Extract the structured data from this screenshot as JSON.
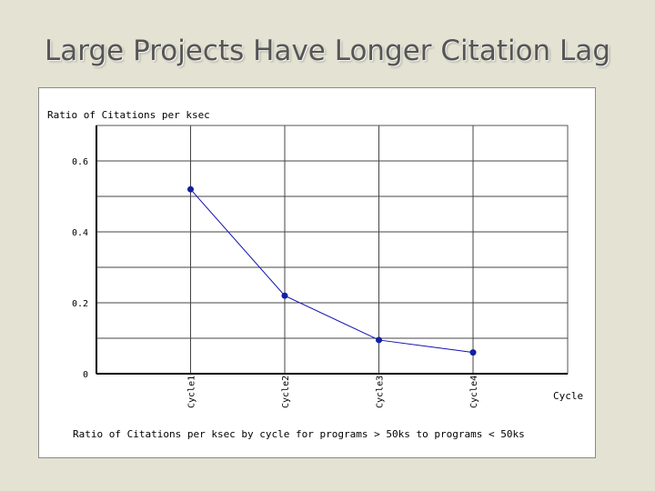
{
  "slide": {
    "title": "Large Projects Have Longer Citation Lag"
  },
  "chart_data": {
    "type": "line",
    "title": "Ratio of Citations per ksec",
    "subtitle": "Ratio of Citations per ksec by cycle for programs > 50ks to programs < 50ks",
    "xlabel": "Cycle",
    "ylabel": "",
    "categories": [
      "Cycle1",
      "Cycle2",
      "Cycle3",
      "Cycle4"
    ],
    "series": [
      {
        "values": [
          0.52,
          0.22,
          0.095,
          0.06
        ]
      }
    ],
    "ylim": [
      0,
      0.7
    ],
    "yticks": [
      {
        "value": 0,
        "label": "0"
      },
      {
        "value": 0.2,
        "label": "0.2"
      },
      {
        "value": 0.4,
        "label": "0.4"
      },
      {
        "value": 0.6,
        "label": "0.6"
      }
    ],
    "grid": true,
    "legend": "none",
    "colors": {
      "line": "#1010b0",
      "point": "#1020a0",
      "grid": "#333333"
    }
  }
}
